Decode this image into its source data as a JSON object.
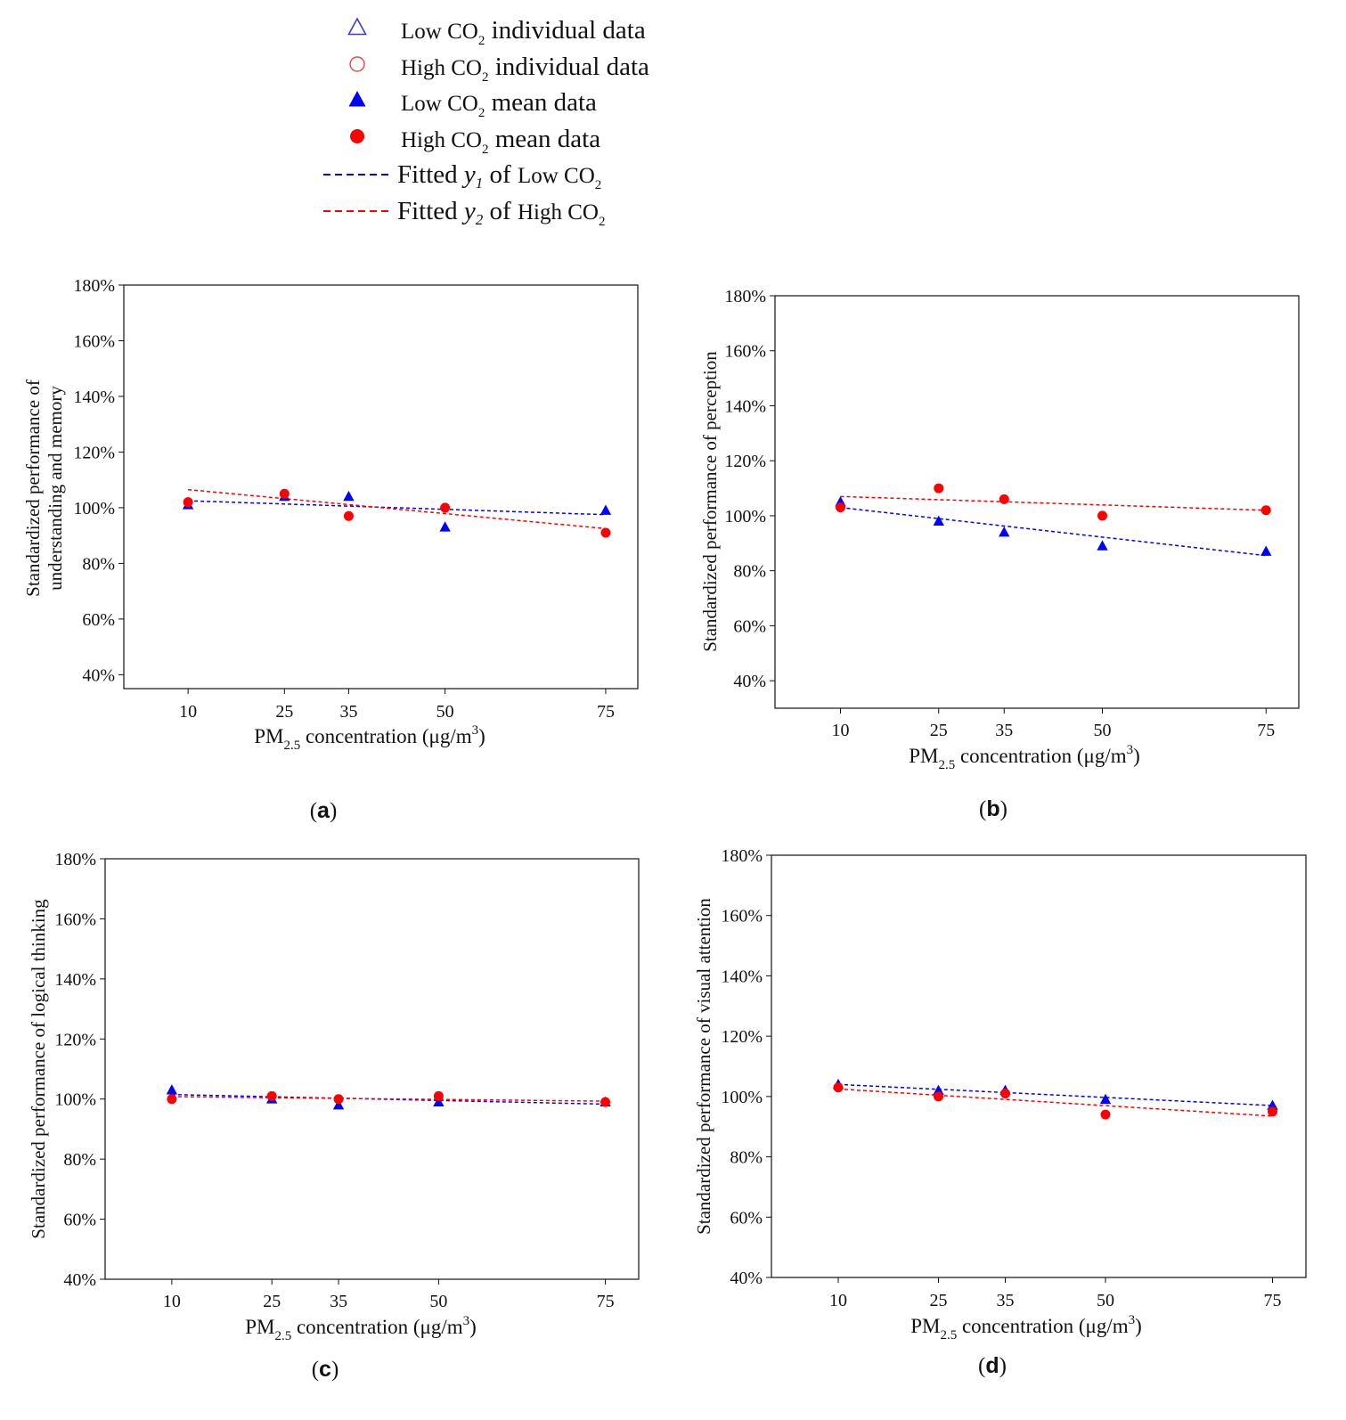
{
  "legend": {
    "entries": [
      {
        "id": "low-ind",
        "marker": "open-triangle",
        "label_main": "Low CO",
        "label_sub": "2",
        "label_tail": "individual data",
        "color": "#3b3bd6"
      },
      {
        "id": "high-ind",
        "marker": "open-circle",
        "label_main": "High CO",
        "label_sub": "2",
        "label_tail": "individual data",
        "color": "#e84a4a"
      },
      {
        "id": "low-mean",
        "marker": "filled-triangle",
        "label_main": "Low CO",
        "label_sub": "2",
        "label_tail": "mean data",
        "color": "#0000ff"
      },
      {
        "id": "high-mean",
        "marker": "filled-circle",
        "label_main": "High CO",
        "label_sub": "2",
        "label_tail": "mean data",
        "color": "#ff0000"
      }
    ],
    "fits": [
      {
        "id": "fit-low",
        "prefix": "Fitted ",
        "var": "y",
        "var_sub": "1",
        "mid": " of ",
        "co_main": "Low CO",
        "co_sub": "2",
        "color": "#0000ff"
      },
      {
        "id": "fit-high",
        "prefix": "Fitted ",
        "var": "y",
        "var_sub": "2",
        "mid": " of ",
        "co_main": "High CO",
        "co_sub": "2",
        "color": "#ff0000"
      }
    ]
  },
  "colors": {
    "low": "#0000ff",
    "high": "#ff0000",
    "axis": "#111111"
  },
  "chart_data": [
    {
      "panel": "a",
      "caption": "a",
      "type": "scatter",
      "ylabel_lines": [
        "Standardized performance of",
        "understanding and memory"
      ],
      "xlabel": {
        "main": "PM",
        "sub": "2.5",
        "tail": " concentration (μg/m",
        "sup": "3",
        "end": ")"
      },
      "x_ticks": [
        10,
        25,
        35,
        50,
        75
      ],
      "y_ticks": [
        "40%",
        "60%",
        "80%",
        "100%",
        "120%",
        "140%",
        "160%",
        "180%"
      ],
      "ylim": [
        35,
        180
      ],
      "xlim": [
        0,
        80
      ],
      "series": [
        {
          "name": "Low CO2 mean data",
          "x": [
            10,
            25,
            35,
            50,
            75
          ],
          "y": [
            101,
            104,
            104,
            93,
            99
          ]
        },
        {
          "name": "High CO2 mean data",
          "x": [
            10,
            25,
            35,
            50,
            75
          ],
          "y": [
            102,
            105,
            97,
            100,
            91
          ]
        }
      ],
      "fits": [
        {
          "name": "Fitted y1 of Low CO2",
          "x": [
            10,
            75
          ],
          "y": [
            102.5,
            97.5
          ]
        },
        {
          "name": "Fitted y2 of High CO2",
          "x": [
            10,
            75
          ],
          "y": [
            106.5,
            92.5
          ]
        }
      ]
    },
    {
      "panel": "b",
      "caption": "b",
      "type": "scatter",
      "ylabel_lines": [
        "Standardized performance of perception"
      ],
      "xlabel": {
        "main": "PM",
        "sub": "2.5",
        "tail": " concentration (μg/m",
        "sup": "3",
        "end": ")"
      },
      "x_ticks": [
        10,
        25,
        35,
        50,
        75
      ],
      "y_ticks": [
        "40%",
        "60%",
        "80%",
        "100%",
        "120%",
        "140%",
        "160%",
        "180%"
      ],
      "ylim": [
        30,
        180
      ],
      "xlim": [
        0,
        80
      ],
      "series": [
        {
          "name": "Low CO2 mean data",
          "x": [
            10,
            25,
            35,
            50,
            75
          ],
          "y": [
            105,
            98,
            94,
            89,
            87
          ]
        },
        {
          "name": "High CO2 mean data",
          "x": [
            10,
            25,
            35,
            50,
            75
          ],
          "y": [
            103,
            110,
            106,
            100,
            102
          ]
        }
      ],
      "fits": [
        {
          "name": "Fitted y1 of Low CO2",
          "x": [
            10,
            75
          ],
          "y": [
            103,
            85.5
          ]
        },
        {
          "name": "Fitted y2 of High CO2",
          "x": [
            10,
            75
          ],
          "y": [
            107,
            102
          ]
        }
      ]
    },
    {
      "panel": "c",
      "caption": "c",
      "type": "scatter",
      "ylabel_lines": [
        "Standardized performance of logical thinking"
      ],
      "xlabel": {
        "main": "PM",
        "sub": "2.5",
        "tail": " concentration (μg/m",
        "sup": "3",
        "end": ")"
      },
      "x_ticks": [
        10,
        25,
        35,
        50,
        75
      ],
      "y_ticks": [
        "40%",
        "60%",
        "80%",
        "100%",
        "120%",
        "140%",
        "160%",
        "180%"
      ],
      "ylim": [
        40,
        180
      ],
      "xlim": [
        0,
        80
      ],
      "series": [
        {
          "name": "Low CO2 mean data",
          "x": [
            10,
            25,
            35,
            50,
            75
          ],
          "y": [
            103,
            100,
            98,
            99,
            99
          ]
        },
        {
          "name": "High CO2 mean data",
          "x": [
            10,
            25,
            35,
            50,
            75
          ],
          "y": [
            100,
            101,
            100,
            101,
            99
          ]
        }
      ],
      "fits": [
        {
          "name": "Fitted y1 of Low CO2",
          "x": [
            10,
            75
          ],
          "y": [
            101.5,
            98.3
          ]
        },
        {
          "name": "Fitted y2 of High CO2",
          "x": [
            10,
            75
          ],
          "y": [
            100.8,
            99.3
          ]
        }
      ]
    },
    {
      "panel": "d",
      "caption": "d",
      "type": "scatter",
      "ylabel_lines": [
        "Standardized performance of visual attention"
      ],
      "xlabel": {
        "main": "PM",
        "sub": "2.5",
        "tail": " concentration (μg/m",
        "sup": "3",
        "end": ")"
      },
      "x_ticks": [
        10,
        25,
        35,
        50,
        75
      ],
      "y_ticks": [
        "40%",
        "60%",
        "80%",
        "100%",
        "120%",
        "140%",
        "160%",
        "180%"
      ],
      "ylim": [
        40,
        180
      ],
      "xlim": [
        0,
        80
      ],
      "series": [
        {
          "name": "Low CO2 mean data",
          "x": [
            10,
            25,
            35,
            50,
            75
          ],
          "y": [
            104,
            102,
            102,
            99,
            97
          ]
        },
        {
          "name": "High CO2 mean data",
          "x": [
            10,
            25,
            35,
            50,
            75
          ],
          "y": [
            103,
            100,
            101,
            94,
            95
          ]
        }
      ],
      "fits": [
        {
          "name": "Fitted y1 of Low CO2",
          "x": [
            10,
            75
          ],
          "y": [
            104,
            97
          ]
        },
        {
          "name": "Fitted y2 of High CO2",
          "x": [
            10,
            75
          ],
          "y": [
            102.5,
            93.5
          ]
        }
      ]
    }
  ]
}
